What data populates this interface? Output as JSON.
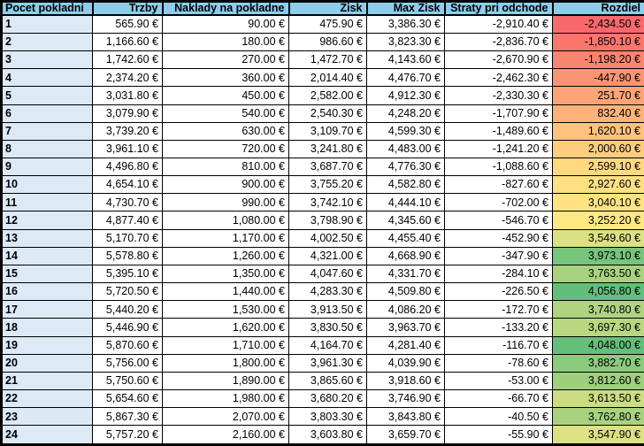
{
  "colors": {
    "header_bg": "#8DCDEA",
    "row_header_bg": "#DCE9F7",
    "grid_border": "#000000",
    "cell_bg": "#FFFFFF",
    "text": "#000000",
    "scale_min": "#F8696B",
    "scale_mid": "#FFEB84",
    "scale_max": "#63BE7B"
  },
  "table": {
    "headers": [
      {
        "label": "Pocet pokladni"
      },
      {
        "label": "Trzby"
      },
      {
        "label": "Naklady na pokladne"
      },
      {
        "label": "Zisk"
      },
      {
        "label": "Max Zisk"
      },
      {
        "label": "Straty pri odchode"
      },
      {
        "label": "Rozdiel"
      }
    ],
    "rows": [
      {
        "pocet": "1",
        "trzby": "565.90 €",
        "naklady": "90.00 €",
        "zisk": "475.90 €",
        "max_zisk": "3,386.30 €",
        "straty": "-2,910.40 €",
        "rozdiel": "-2,434.50 €",
        "rozdiel_color": "#F8696B"
      },
      {
        "pocet": "2",
        "trzby": "1,166.60 €",
        "naklady": "180.00 €",
        "zisk": "986.60 €",
        "max_zisk": "3,823.30 €",
        "straty": "-2,836.70 €",
        "rozdiel": "-1,850.10 €",
        "rozdiel_color": "#F9766D"
      },
      {
        "pocet": "3",
        "trzby": "1,742.60 €",
        "naklady": "270.00 €",
        "zisk": "1,472.70 €",
        "max_zisk": "4,143.60 €",
        "straty": "-2,670.90 €",
        "rozdiel": "-1,198.20 €",
        "rozdiel_color": "#F98570"
      },
      {
        "pocet": "4",
        "trzby": "2,374.20 €",
        "naklady": "360.00 €",
        "zisk": "2,014.40 €",
        "max_zisk": "4,476.70 €",
        "straty": "-2,462.30 €",
        "rozdiel": "-447.90 €",
        "rozdiel_color": "#FA9574"
      },
      {
        "pocet": "5",
        "trzby": "3,031.80 €",
        "naklady": "450.00 €",
        "zisk": "2,582.00 €",
        "max_zisk": "4,912.30 €",
        "straty": "-2,330.30 €",
        "rozdiel": "251.70 €",
        "rozdiel_color": "#FBA577"
      },
      {
        "pocet": "6",
        "trzby": "3,079.90 €",
        "naklady": "540.00 €",
        "zisk": "2,540.30 €",
        "max_zisk": "4,248.20 €",
        "straty": "-1,707.90 €",
        "rozdiel": "832.40 €",
        "rozdiel_color": "#FCB279"
      },
      {
        "pocet": "7",
        "trzby": "3,739.20 €",
        "naklady": "630.00 €",
        "zisk": "3,109.70 €",
        "max_zisk": "4,599.30 €",
        "straty": "-1,489.60 €",
        "rozdiel": "1,620.10 €",
        "rozdiel_color": "#FDC37C"
      },
      {
        "pocet": "8",
        "trzby": "3,961.10 €",
        "naklady": "720.00 €",
        "zisk": "3,241.80 €",
        "max_zisk": "4,483.00 €",
        "straty": "-1,241.20 €",
        "rozdiel": "2,000.60 €",
        "rozdiel_color": "#FDCC7E"
      },
      {
        "pocet": "9",
        "trzby": "4,496.80 €",
        "naklady": "810.00 €",
        "zisk": "3,687.70 €",
        "max_zisk": "4,776.30 €",
        "straty": "-1,088.60 €",
        "rozdiel": "2,599.10 €",
        "rozdiel_color": "#FED981"
      },
      {
        "pocet": "10",
        "trzby": "4,654.10 €",
        "naklady": "900.00 €",
        "zisk": "3,755.20 €",
        "max_zisk": "4,582.80 €",
        "straty": "-827.60 €",
        "rozdiel": "2,927.60 €",
        "rozdiel_color": "#FEE082"
      },
      {
        "pocet": "11",
        "trzby": "4,730.70 €",
        "naklady": "990.00 €",
        "zisk": "3,742.10 €",
        "max_zisk": "4,444.10 €",
        "straty": "-702.00 €",
        "rozdiel": "3,040.10 €",
        "rozdiel_color": "#FFE382"
      },
      {
        "pocet": "12",
        "trzby": "4,877.40 €",
        "naklady": "1,080.00 €",
        "zisk": "3,798.90 €",
        "max_zisk": "4,345.60 €",
        "straty": "-546.70 €",
        "rozdiel": "3,252.20 €",
        "rozdiel_color": "#FFE883"
      },
      {
        "pocet": "13",
        "trzby": "5,170.70 €",
        "naklady": "1,170.00 €",
        "zisk": "4,002.50 €",
        "max_zisk": "4,455.40 €",
        "straty": "-452.90 €",
        "rozdiel": "3,549.60 €",
        "rozdiel_color": "#DBE182"
      },
      {
        "pocet": "14",
        "trzby": "5,578.80 €",
        "naklady": "1,260.00 €",
        "zisk": "4,321.00 €",
        "max_zisk": "4,668.90 €",
        "straty": "-347.90 €",
        "rozdiel": "3,973.10 €",
        "rozdiel_color": "#77C47C"
      },
      {
        "pocet": "15",
        "trzby": "5,395.10 €",
        "naklady": "1,350.00 €",
        "zisk": "4,047.60 €",
        "max_zisk": "4,331.70 €",
        "straty": "-284.10 €",
        "rozdiel": "3,763.50 €",
        "rozdiel_color": "#A9D27F"
      },
      {
        "pocet": "16",
        "trzby": "5,720.50 €",
        "naklady": "1,440.00 €",
        "zisk": "4,283.30 €",
        "max_zisk": "4,509.80 €",
        "straty": "-226.50 €",
        "rozdiel": "4,056.80 €",
        "rozdiel_color": "#63BE7B"
      },
      {
        "pocet": "17",
        "trzby": "5,440.20 €",
        "naklady": "1,530.00 €",
        "zisk": "3,913.50 €",
        "max_zisk": "4,086.20 €",
        "straty": "-172.70 €",
        "rozdiel": "3,740.80 €",
        "rozdiel_color": "#AED47F"
      },
      {
        "pocet": "18",
        "trzby": "5,446.90 €",
        "naklady": "1,620.00 €",
        "zisk": "3,830.50 €",
        "max_zisk": "3,963.70 €",
        "straty": "-133.20 €",
        "rozdiel": "3,697.30 €",
        "rozdiel_color": "#B8D780"
      },
      {
        "pocet": "19",
        "trzby": "5,870.60 €",
        "naklady": "1,710.00 €",
        "zisk": "4,164.70 €",
        "max_zisk": "4,281.40 €",
        "straty": "-116.70 €",
        "rozdiel": "4,048.00 €",
        "rozdiel_color": "#65BF7B"
      },
      {
        "pocet": "20",
        "trzby": "5,756.00 €",
        "naklady": "1,800.00 €",
        "zisk": "3,961.30 €",
        "max_zisk": "4,039.90 €",
        "straty": "-78.60 €",
        "rozdiel": "3,882.70 €",
        "rozdiel_color": "#8CCA7D"
      },
      {
        "pocet": "21",
        "trzby": "5,750.60 €",
        "naklady": "1,890.00 €",
        "zisk": "3,865.60 €",
        "max_zisk": "3,918.60 €",
        "straty": "-53.00 €",
        "rozdiel": "3,812.60 €",
        "rozdiel_color": "#9DCF7E"
      },
      {
        "pocet": "22",
        "trzby": "5,654.60 €",
        "naklady": "1,980.00 €",
        "zisk": "3,680.20 €",
        "max_zisk": "3,746.90 €",
        "straty": "-66.70 €",
        "rozdiel": "3,613.50 €",
        "rozdiel_color": "#CCDC81"
      },
      {
        "pocet": "23",
        "trzby": "5,867.30 €",
        "naklady": "2,070.00 €",
        "zisk": "3,803.30 €",
        "max_zisk": "3,843.80 €",
        "straty": "-40.50 €",
        "rozdiel": "3,762.80 €",
        "rozdiel_color": "#A9D27F"
      },
      {
        "pocet": "24",
        "trzby": "5,757.20 €",
        "naklady": "2,160.00 €",
        "zisk": "3,603.80 €",
        "max_zisk": "3,659.70 €",
        "straty": "-55.90 €",
        "rozdiel": "3,547.90 €",
        "rozdiel_color": "#DCE182"
      }
    ]
  }
}
